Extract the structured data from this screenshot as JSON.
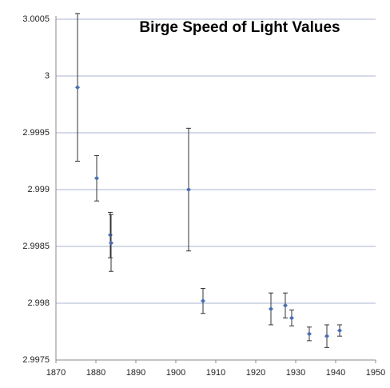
{
  "chart_data": {
    "type": "scatter",
    "title": "Birge Speed of Light Values",
    "x": [
      1875.4,
      1880.2,
      1883.6,
      1883.8,
      1903.2,
      1906.8,
      1923.8,
      1927.4,
      1929,
      1933.4,
      1937.8,
      1941
    ],
    "values": [
      2.9999,
      2.9991,
      2.9986,
      2.99853,
      2.999,
      2.99802,
      2.99795,
      2.99798,
      2.99787,
      2.99773,
      2.99771,
      2.99776
    ],
    "errors": [
      0.00065,
      0.0002,
      0.0002,
      0.00025,
      0.00054,
      0.00011,
      0.00014,
      0.00011,
      7e-05,
      6e-05,
      0.0001,
      5e-05
    ],
    "color": "#4a6fb0",
    "xlim": [
      1870,
      1950
    ],
    "ylim": [
      2.9975,
      3.0005
    ],
    "xticks": [
      1870,
      1880,
      1890,
      1900,
      1910,
      1920,
      1930,
      1940,
      1950
    ],
    "yticks": [
      2.9975,
      2.998,
      2.9985,
      2.999,
      2.9995,
      3,
      3.0005
    ],
    "grid": true
  }
}
